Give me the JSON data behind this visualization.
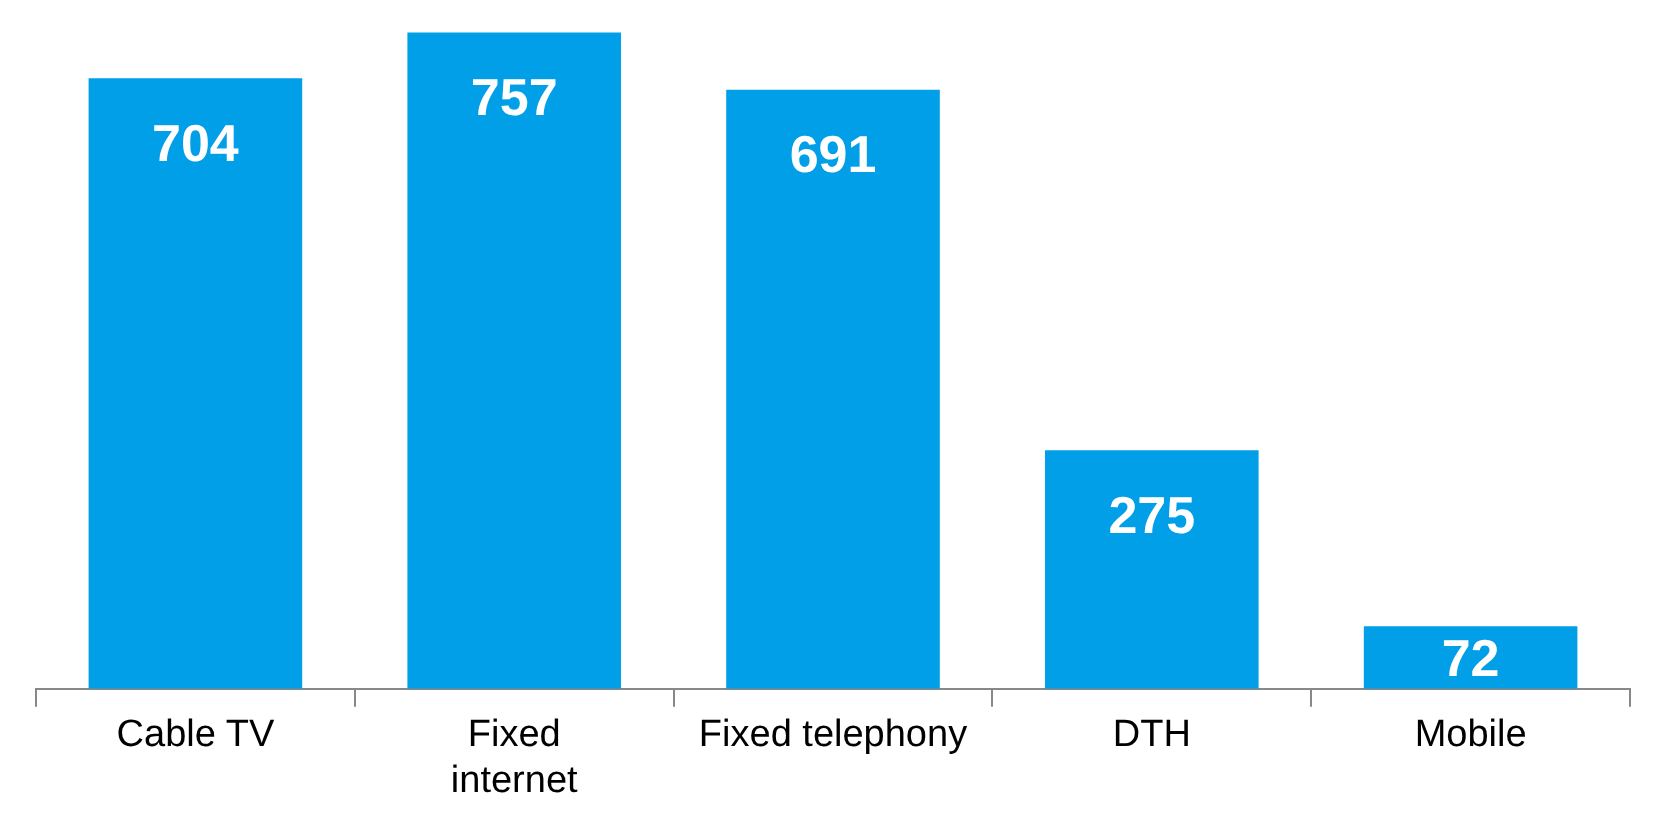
{
  "chart_data": {
    "type": "bar",
    "categories": [
      "Cable TV",
      "Fixed internet",
      "Fixed telephony",
      "DTH",
      "Mobile"
    ],
    "values": [
      704,
      757,
      691,
      275,
      72
    ],
    "color": "#009fe8",
    "data_labels": true,
    "grid": false,
    "legend": false
  }
}
